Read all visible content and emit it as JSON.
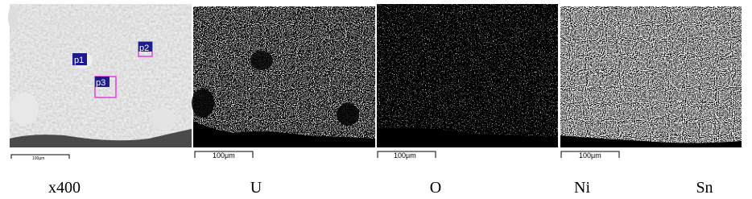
{
  "panels": [
    {
      "caption": "x400",
      "scale_label": "100μm",
      "markers": [
        "p1",
        "p2",
        "p3"
      ]
    },
    {
      "caption": "U",
      "scale_label": "100μm"
    },
    {
      "caption": "O",
      "scale_label": "100μm"
    },
    {
      "caption": "Ni",
      "scale_label": "100μm"
    },
    {
      "caption": "Sn"
    }
  ]
}
